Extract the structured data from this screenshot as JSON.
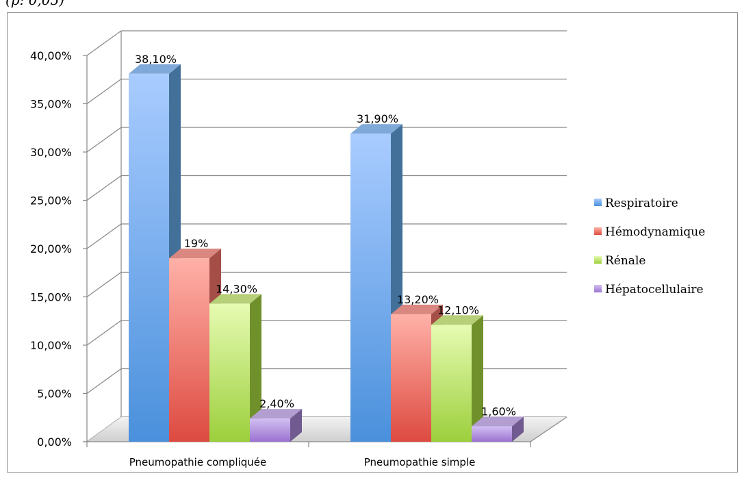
{
  "top_caption": "(p: 0,05)",
  "chart_data": {
    "type": "bar",
    "categories": [
      "Pneumopathie compliquée",
      "Pneumopathie simple"
    ],
    "series": [
      {
        "name": "Respiratoire",
        "values": [
          38.1,
          31.9
        ],
        "labels": [
          "38,10%",
          "31,90%"
        ],
        "color": "#5b9bd5"
      },
      {
        "name": "Hémodynamique",
        "values": [
          19,
          13.2
        ],
        "labels": [
          "19%",
          "13,20%"
        ],
        "color": "#e46c62"
      },
      {
        "name": "Rénale",
        "values": [
          14.3,
          12.1
        ],
        "labels": [
          "14,30%",
          "12,10%"
        ],
        "color": "#9bc83d"
      },
      {
        "name": "Hépatocellulaire",
        "values": [
          2.4,
          1.6
        ],
        "labels": [
          "2,40%",
          "1,60%"
        ],
        "color": "#9b7dc8"
      }
    ],
    "y_ticks": [
      "0,00%",
      "5,00%",
      "10,00%",
      "15,00%",
      "20,00%",
      "25,00%",
      "30,00%",
      "35,00%",
      "40,00%"
    ],
    "ylim": [
      0,
      40
    ],
    "ylabel": "",
    "xlabel": "",
    "title": "",
    "grid": true,
    "style": "3d-column",
    "legend_position": "right"
  }
}
